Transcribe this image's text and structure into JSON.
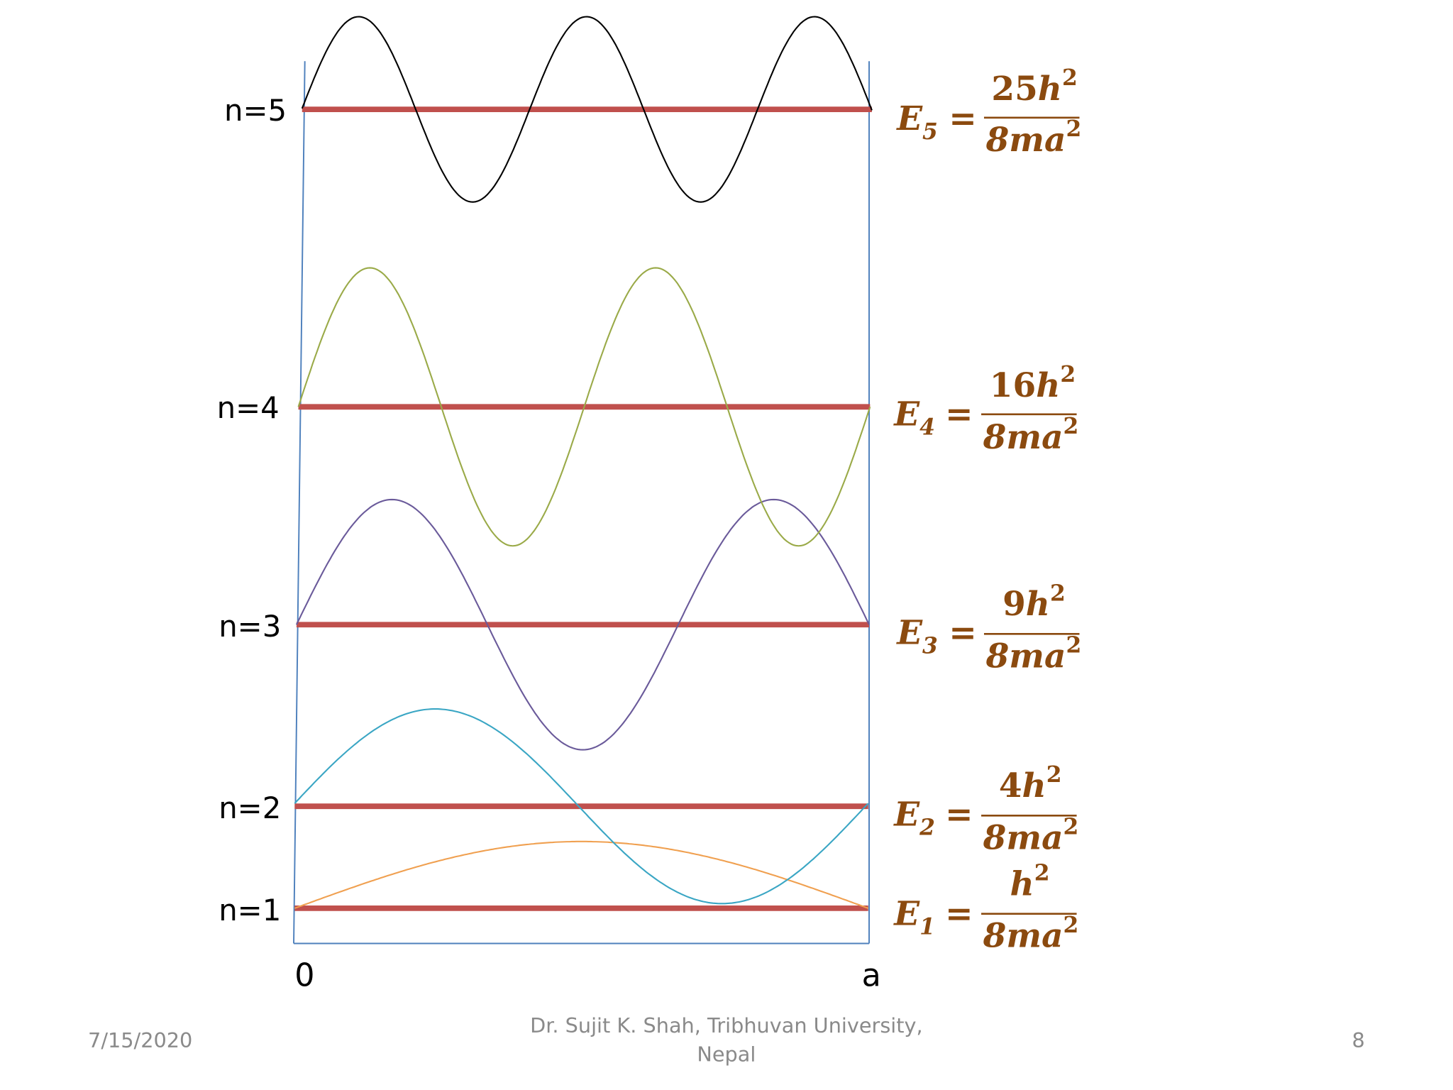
{
  "levels": [
    {
      "n": 1,
      "label": "n=1",
      "eq_lhs_sub": "1",
      "eq_num_coef": "",
      "eq_num_var": "h",
      "eq_num_exp": "2",
      "eq_den": "8ma",
      "eq_den_exp": "2",
      "color": "#f0a050"
    },
    {
      "n": 2,
      "label": "n=2",
      "eq_lhs_sub": "2",
      "eq_num_coef": "4",
      "eq_num_var": "h",
      "eq_num_exp": "2",
      "eq_den": "8ma",
      "eq_den_exp": "2",
      "color": "#3aa6c4"
    },
    {
      "n": 3,
      "label": "n=3",
      "eq_lhs_sub": "3",
      "eq_num_coef": "9",
      "eq_num_var": "h",
      "eq_num_exp": "2",
      "eq_den": "8ma",
      "eq_den_exp": "2",
      "color": "#6a5a9a"
    },
    {
      "n": 4,
      "label": "n=4",
      "eq_lhs_sub": "4",
      "eq_num_coef": "16",
      "eq_num_var": "h",
      "eq_num_exp": "2",
      "eq_den": "8ma",
      "eq_den_exp": "2",
      "color": "#9aaa48"
    },
    {
      "n": 5,
      "label": "n=5",
      "eq_lhs_sub": "5",
      "eq_num_coef": "25",
      "eq_num_var": "h",
      "eq_num_exp": "2",
      "eq_den": "8ma",
      "eq_den_exp": "2",
      "color": "#000000"
    }
  ],
  "eq_lhs_symbol": "E",
  "eq_equals": "=",
  "axis": {
    "left_label": "0",
    "right_label": "a"
  },
  "footer": {
    "date": "7/15/2020",
    "author_line1": "Dr. Sujit K. Shah, Tribhuvan University,",
    "author_line2": "Nepal",
    "page_number": "8"
  },
  "colors": {
    "energy_level": "#c0504d",
    "well_wall": "#4f81bd",
    "equation": "#8b4a0f"
  }
}
